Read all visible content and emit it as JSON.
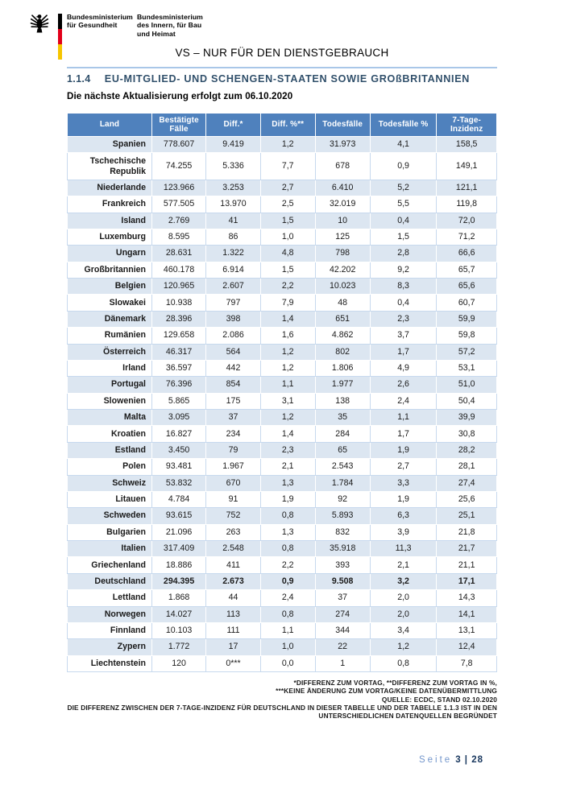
{
  "colors": {
    "header-blue": "#4f81bd",
    "row-alt": "#dce6f1",
    "rule-blue": "#a9c7e8",
    "title-color": "#31506b",
    "footer-light": "#7396cc",
    "footer-navy": "#17365d"
  },
  "header": {
    "ministry_health": "Bundesministerium\nfür Gesundheit",
    "ministry_interior": "Bundesministerium\ndes Innern, für Bau\nund Heimat",
    "classification": "VS – NUR FÜR DEN DIENSTGEBRAUCH"
  },
  "section": {
    "number": "1.1.4",
    "title": "EU-MITGLIED- UND SCHENGEN-STAATEN SOWIE GROßBRITANNIEN"
  },
  "update_notice": "Die nächste Aktualisierung erfolgt zum 06.10.2020",
  "table": {
    "columns": [
      "Land",
      "Bestätigte Fälle",
      "Diff.*",
      "Diff. %**",
      "Todesfälle",
      "Todesfälle %",
      "7-Tage-Inzidenz"
    ],
    "rows": [
      {
        "land": "Spanien",
        "values": [
          "778.607",
          "9.419",
          "1,2",
          "31.973",
          "4,1",
          "158,5"
        ]
      },
      {
        "land": "Tschechische Republik",
        "values": [
          "74.255",
          "5.336",
          "7,7",
          "678",
          "0,9",
          "149,1"
        ]
      },
      {
        "land": "Niederlande",
        "values": [
          "123.966",
          "3.253",
          "2,7",
          "6.410",
          "5,2",
          "121,1"
        ]
      },
      {
        "land": "Frankreich",
        "values": [
          "577.505",
          "13.970",
          "2,5",
          "32.019",
          "5,5",
          "119,8"
        ]
      },
      {
        "land": "Island",
        "values": [
          "2.769",
          "41",
          "1,5",
          "10",
          "0,4",
          "72,0"
        ]
      },
      {
        "land": "Luxemburg",
        "values": [
          "8.595",
          "86",
          "1,0",
          "125",
          "1,5",
          "71,2"
        ]
      },
      {
        "land": "Ungarn",
        "values": [
          "28.631",
          "1.322",
          "4,8",
          "798",
          "2,8",
          "66,6"
        ]
      },
      {
        "land": "Großbritannien",
        "values": [
          "460.178",
          "6.914",
          "1,5",
          "42.202",
          "9,2",
          "65,7"
        ]
      },
      {
        "land": "Belgien",
        "values": [
          "120.965",
          "2.607",
          "2,2",
          "10.023",
          "8,3",
          "65,6"
        ]
      },
      {
        "land": "Slowakei",
        "values": [
          "10.938",
          "797",
          "7,9",
          "48",
          "0,4",
          "60,7"
        ]
      },
      {
        "land": "Dänemark",
        "values": [
          "28.396",
          "398",
          "1,4",
          "651",
          "2,3",
          "59,9"
        ]
      },
      {
        "land": "Rumänien",
        "values": [
          "129.658",
          "2.086",
          "1,6",
          "4.862",
          "3,7",
          "59,8"
        ]
      },
      {
        "land": "Österreich",
        "values": [
          "46.317",
          "564",
          "1,2",
          "802",
          "1,7",
          "57,2"
        ]
      },
      {
        "land": "Irland",
        "values": [
          "36.597",
          "442",
          "1,2",
          "1.806",
          "4,9",
          "53,1"
        ]
      },
      {
        "land": "Portugal",
        "values": [
          "76.396",
          "854",
          "1,1",
          "1.977",
          "2,6",
          "51,0"
        ]
      },
      {
        "land": "Slowenien",
        "values": [
          "5.865",
          "175",
          "3,1",
          "138",
          "2,4",
          "50,4"
        ]
      },
      {
        "land": "Malta",
        "values": [
          "3.095",
          "37",
          "1,2",
          "35",
          "1,1",
          "39,9"
        ]
      },
      {
        "land": "Kroatien",
        "values": [
          "16.827",
          "234",
          "1,4",
          "284",
          "1,7",
          "30,8"
        ]
      },
      {
        "land": "Estland",
        "values": [
          "3.450",
          "79",
          "2,3",
          "65",
          "1,9",
          "28,2"
        ]
      },
      {
        "land": "Polen",
        "values": [
          "93.481",
          "1.967",
          "2,1",
          "2.543",
          "2,7",
          "28,1"
        ]
      },
      {
        "land": "Schweiz",
        "values": [
          "53.832",
          "670",
          "1,3",
          "1.784",
          "3,3",
          "27,4"
        ]
      },
      {
        "land": "Litauen",
        "values": [
          "4.784",
          "91",
          "1,9",
          "92",
          "1,9",
          "25,6"
        ]
      },
      {
        "land": "Schweden",
        "values": [
          "93.615",
          "752",
          "0,8",
          "5.893",
          "6,3",
          "25,1"
        ]
      },
      {
        "land": "Bulgarien",
        "values": [
          "21.096",
          "263",
          "1,3",
          "832",
          "3,9",
          "21,8"
        ]
      },
      {
        "land": "Italien",
        "values": [
          "317.409",
          "2.548",
          "0,8",
          "35.918",
          "11,3",
          "21,7"
        ]
      },
      {
        "land": "Griechenland",
        "values": [
          "18.886",
          "411",
          "2,2",
          "393",
          "2,1",
          "21,1"
        ]
      },
      {
        "land": "Deutschland",
        "values": [
          "294.395",
          "2.673",
          "0,9",
          "9.508",
          "3,2",
          "17,1"
        ],
        "highlight": true
      },
      {
        "land": "Lettland",
        "values": [
          "1.868",
          "44",
          "2,4",
          "37",
          "2,0",
          "14,3"
        ]
      },
      {
        "land": "Norwegen",
        "values": [
          "14.027",
          "113",
          "0,8",
          "274",
          "2,0",
          "14,1"
        ]
      },
      {
        "land": "Finnland",
        "values": [
          "10.103",
          "111",
          "1,1",
          "344",
          "3,4",
          "13,1"
        ]
      },
      {
        "land": "Zypern",
        "values": [
          "1.772",
          "17",
          "1,0",
          "22",
          "1,2",
          "12,4"
        ]
      },
      {
        "land": "Liechtenstein",
        "values": [
          "120",
          "0***",
          "0,0",
          "1",
          "0,8",
          "7,8"
        ]
      }
    ]
  },
  "footnotes": [
    "*DIFFERENZ ZUM VORTAG, **DIFFERENZ ZUM VORTAG IN %,",
    "***KEINE ÄNDERUNG ZUM VORTAG/KEINE DATENÜBERMITTLUNG",
    "QUELLE: ECDC, STAND 02.10.2020",
    "DIE DIFFERENZ ZWISCHEN DER 7-TAGE-INZIDENZ FÜR DEUTSCHLAND IN DIESER TABELLE UND DER TABELLE 1.1.3 IST IN DEN UNTERSCHIEDLICHEN DATENQUELLEN BEGRÜNDET"
  ],
  "footer": {
    "label": "Seite",
    "page": "3 | 28"
  }
}
